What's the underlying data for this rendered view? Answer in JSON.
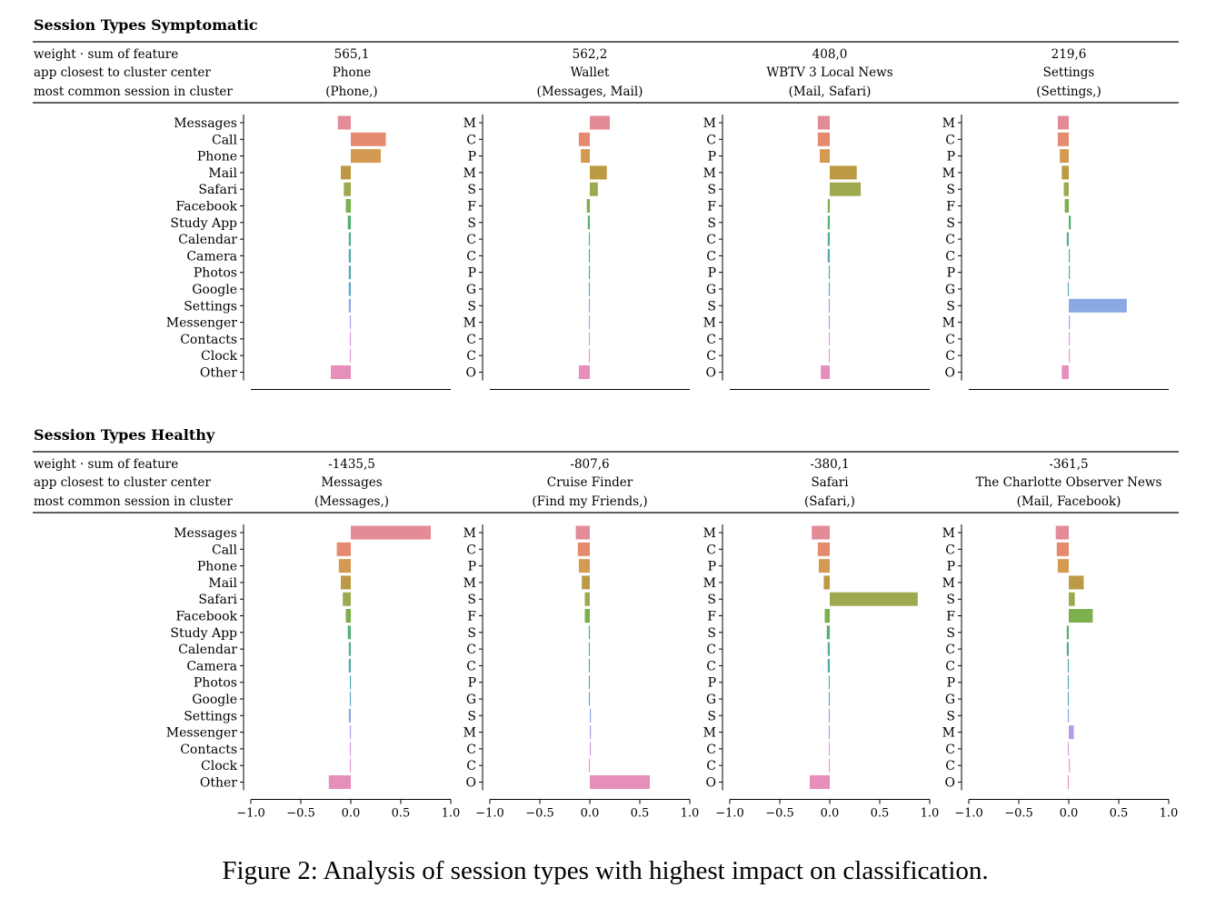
{
  "caption": "Figure 2: Analysis of session types with highest impact on classification.",
  "header_labels": [
    "weight · sum of feature",
    "app closest to cluster center",
    "most common session in cluster"
  ],
  "features": [
    "Messages",
    "Call",
    "Phone",
    "Mail",
    "Safari",
    "Facebook",
    "Study App",
    "Calendar",
    "Camera",
    "Photos",
    "Google",
    "Settings",
    "Messenger",
    "Contacts",
    "Clock",
    "Other"
  ],
  "initials": [
    "M",
    "C",
    "P",
    "M",
    "S",
    "F",
    "S",
    "C",
    "C",
    "P",
    "G",
    "S",
    "M",
    "C",
    "C",
    "O"
  ],
  "colors": [
    "#e48b98",
    "#e58a6e",
    "#d49a52",
    "#bb9a43",
    "#9ea84f",
    "#7bb04d",
    "#53b074",
    "#4fae95",
    "#4eaaa5",
    "#50a7b6",
    "#5aa4c9",
    "#8aa8e4",
    "#b59ae6",
    "#d99ae4",
    "#e69bd3",
    "#e68fbb"
  ],
  "axis": {
    "xlim": [
      -1.0,
      1.0
    ],
    "ticks": [
      "−1.0",
      "−0.5",
      "0.0",
      "0.5",
      "1.0"
    ]
  },
  "chart_data": [
    {
      "type": "bar",
      "title": "Session Types Symptomatic",
      "panels": [
        {
          "weight": "565,1",
          "app": "Phone",
          "session": "(Phone,)",
          "values": [
            -0.13,
            0.35,
            0.3,
            -0.1,
            -0.07,
            -0.05,
            -0.03,
            -0.02,
            -0.02,
            -0.02,
            -0.02,
            -0.02,
            -0.01,
            -0.01,
            -0.01,
            -0.2
          ]
        },
        {
          "weight": "562,2",
          "app": "Wallet",
          "session": "(Messages, Mail)",
          "values": [
            0.2,
            -0.11,
            -0.09,
            0.17,
            0.08,
            -0.03,
            -0.02,
            -0.01,
            -0.01,
            -0.01,
            -0.01,
            -0.01,
            -0.01,
            -0.01,
            -0.01,
            -0.11
          ]
        },
        {
          "weight": "408,0",
          "app": "WBTV 3 Local News",
          "session": "(Mail, Safari)",
          "values": [
            -0.12,
            -0.12,
            -0.1,
            0.27,
            0.31,
            -0.02,
            -0.02,
            -0.02,
            -0.02,
            -0.01,
            -0.01,
            -0.01,
            -0.01,
            -0.01,
            -0.01,
            -0.09
          ]
        },
        {
          "weight": "219,6",
          "app": "Settings",
          "session": "(Settings,)",
          "values": [
            -0.11,
            -0.11,
            -0.09,
            -0.07,
            -0.05,
            -0.04,
            0.02,
            -0.02,
            0.01,
            0.01,
            -0.01,
            0.58,
            0.01,
            0.01,
            0.01,
            -0.07
          ]
        }
      ]
    },
    {
      "type": "bar",
      "title": "Session Types Healthy",
      "panels": [
        {
          "weight": "-1435,5",
          "app": "Messages",
          "session": "(Messages,)",
          "values": [
            0.8,
            -0.14,
            -0.12,
            -0.1,
            -0.08,
            -0.05,
            -0.03,
            -0.02,
            -0.02,
            -0.01,
            -0.01,
            -0.02,
            -0.01,
            -0.01,
            -0.01,
            -0.22
          ]
        },
        {
          "weight": "-807,6",
          "app": "Cruise Finder",
          "session": "(Find my Friends,)",
          "values": [
            -0.14,
            -0.12,
            -0.11,
            -0.08,
            -0.05,
            -0.05,
            -0.01,
            -0.01,
            -0.01,
            -0.01,
            -0.01,
            0.01,
            0.01,
            0.01,
            -0.01,
            0.6
          ]
        },
        {
          "weight": "-380,1",
          "app": "Safari",
          "session": "(Safari,)",
          "values": [
            -0.18,
            -0.12,
            -0.11,
            -0.06,
            0.88,
            -0.05,
            -0.03,
            -0.02,
            -0.02,
            -0.01,
            -0.01,
            -0.01,
            -0.01,
            -0.01,
            -0.01,
            -0.2
          ]
        },
        {
          "weight": "-361,5",
          "app": "The Charlotte Observer News",
          "session": "(Mail, Facebook)",
          "values": [
            -0.13,
            -0.12,
            -0.11,
            0.15,
            0.06,
            0.24,
            -0.02,
            -0.02,
            -0.01,
            -0.01,
            -0.01,
            -0.01,
            0.05,
            -0.01,
            0.01,
            -0.01
          ]
        }
      ]
    }
  ]
}
